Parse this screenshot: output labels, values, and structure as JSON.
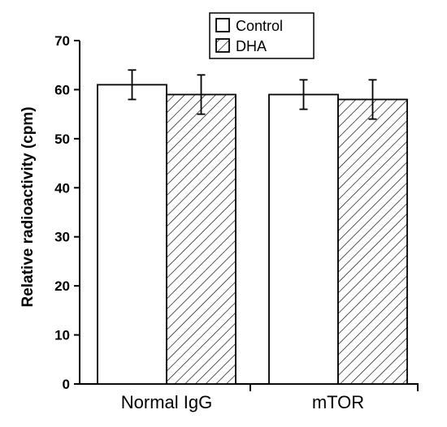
{
  "chart_data": {
    "type": "bar",
    "categories": [
      "Normal IgG",
      "mTOR"
    ],
    "series": [
      {
        "name": "Control",
        "values": [
          61,
          59
        ],
        "errors": [
          3,
          3
        ],
        "fill": "white"
      },
      {
        "name": "DHA",
        "values": [
          59,
          58
        ],
        "errors": [
          4,
          4
        ],
        "fill": "hatched"
      }
    ],
    "ylabel": "Relative radioactivity (cpm)",
    "xlabel": "",
    "ylim": [
      0,
      70
    ],
    "yticks": [
      0,
      10,
      20,
      30,
      40,
      50,
      60,
      70
    ],
    "legend_position": "top-center",
    "grid": false,
    "colors": {
      "stroke": "#000000",
      "background": "#ffffff"
    }
  }
}
